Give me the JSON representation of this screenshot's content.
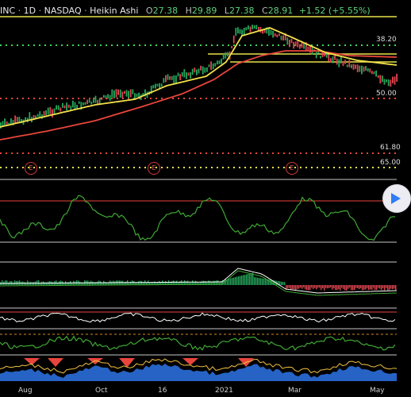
{
  "header": {
    "symbol": "INC",
    "interval": "1D",
    "exchange": "NASDAQ",
    "chart_style": "Heikin Ashi",
    "open_label": "O",
    "open": "27.38",
    "high_label": "H",
    "high": "29.89",
    "low_label": "L",
    "low": "27.38",
    "close_label": "C",
    "close": "28.91",
    "change": "+1.52 (+5.55%)",
    "separator": "·"
  },
  "fib_labels": [
    "38.20",
    "50.00",
    "61.80",
    "65.00"
  ],
  "earnings_badges": [
    "E",
    "E",
    "E"
  ],
  "x_axis_labels": [
    "Aug",
    "Oct",
    "16",
    "2021",
    "Mar",
    "May"
  ],
  "scroll_button": {
    "icon": "play-icon"
  },
  "colors": {
    "up_candle": "#26a65b",
    "down_candle": "#e0454f",
    "ma_fast": "#f2e14b",
    "ma_slow": "#e8453c",
    "fib_green": "#3fd45a",
    "fib_red": "#e8453c",
    "fib_yellow": "#e8e34b",
    "oscillator": "#3fa834",
    "divider": "#c8c8c8"
  }
}
